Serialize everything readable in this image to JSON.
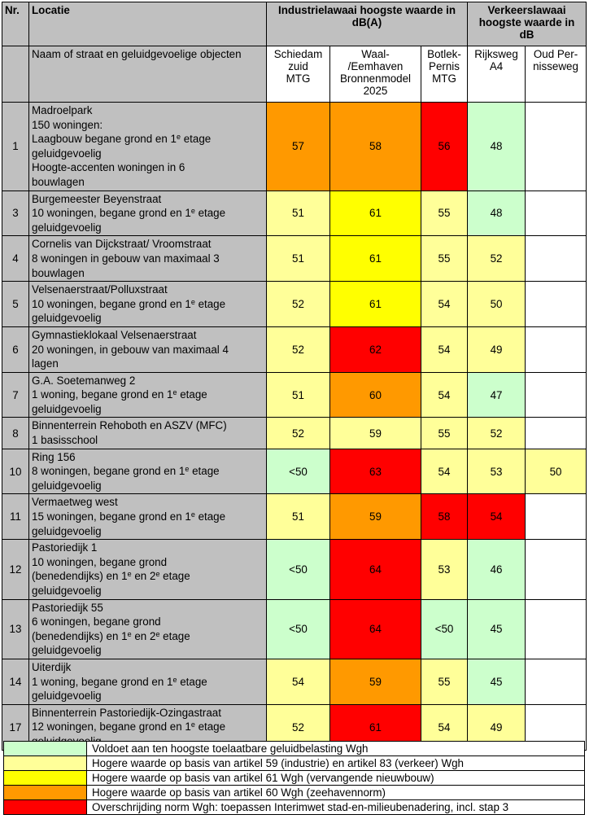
{
  "headers": {
    "nr": "Nr.",
    "locatie": "Locatie",
    "industrie": "Industrielawaai hoogste waarde in dB(A)",
    "verkeer": "Verkeerslawaai hoogste waarde in dB",
    "sub_locatie": "Naam of straat en geluidgevoelige objecten",
    "col_schiedam": [
      "Schiedam",
      "zuid",
      "MTG"
    ],
    "col_waal": [
      "Waal-",
      "/Eemhaven",
      "Bronnenmodel",
      "2025"
    ],
    "col_botlek": [
      "Botlek-",
      "Pernis",
      "MTG"
    ],
    "col_rijksweg": [
      "Rijksweg",
      "A4"
    ],
    "col_oud": [
      "Oud Per-",
      "nisseweg"
    ]
  },
  "rows": [
    {
      "nr": "1",
      "height": 107,
      "loc": [
        "Madroelpark",
        "150 woningen:",
        "Laagbouw begane grond en 1|e| etage",
        "geluidgevoelig",
        "Hoogte-accenten woningen in 6",
        "bouwlagen"
      ],
      "values": [
        "57",
        "58",
        "56",
        "48",
        ""
      ],
      "colors": [
        "orange",
        "orange",
        "red",
        "green",
        "white"
      ]
    },
    {
      "nr": "3",
      "height": 54,
      "loc": [
        "Burgemeester Beyenstraat",
        "10 woningen, begane grond en 1|e| etage",
        "geluidgevoelig"
      ],
      "values": [
        "51",
        "61",
        "55",
        "48",
        ""
      ],
      "colors": [
        "lyellow",
        "yellow",
        "lyellow",
        "green",
        "white"
      ]
    },
    {
      "nr": "4",
      "height": 54,
      "loc": [
        "Cornelis van Dijckstraat/ Vroomstraat",
        "8 woningen in gebouw van maximaal 3",
        "bouwlagen"
      ],
      "values": [
        "51",
        "61",
        "55",
        "52",
        ""
      ],
      "colors": [
        "lyellow",
        "yellow",
        "lyellow",
        "lyellow",
        "white"
      ]
    },
    {
      "nr": "5",
      "height": 53,
      "loc": [
        "Velsenaerstraat/Polluxstraat",
        "10 woningen, begane grond en 1|e| etage",
        "geluidgevoelig"
      ],
      "values": [
        "52",
        "61",
        "54",
        "50",
        ""
      ],
      "colors": [
        "lyellow",
        "yellow",
        "lyellow",
        "lyellow",
        "white"
      ]
    },
    {
      "nr": "6",
      "height": 53,
      "loc": [
        "Gymnastieklokaal Velsenaerstraat",
        "20 woningen, in gebouw van maximaal 4",
        "lagen"
      ],
      "values": [
        "52",
        "62",
        "54",
        "49",
        ""
      ],
      "colors": [
        "lyellow",
        "red",
        "lyellow",
        "lyellow",
        "white"
      ]
    },
    {
      "nr": "7",
      "height": 53,
      "loc": [
        "G.A. Soetemanweg 2",
        "1 woning, begane grond en 1|e| etage",
        "geluidgevoelig"
      ],
      "values": [
        "51",
        "60",
        "54",
        "47",
        ""
      ],
      "colors": [
        "lyellow",
        "orange",
        "lyellow",
        "green",
        "white"
      ]
    },
    {
      "nr": "8",
      "height": 37,
      "loc": [
        "Binnenterrein Rehoboth en ASZV (MFC)",
        "1 basisschool"
      ],
      "values": [
        "52",
        "59",
        "55",
        "52",
        ""
      ],
      "colors": [
        "lyellow",
        "lyellow",
        "lyellow",
        "lyellow",
        "white"
      ]
    },
    {
      "nr": "10",
      "height": 54,
      "loc": [
        "Ring 156",
        "8 woningen, begane grond en 1|e| etage",
        "geluidgevoelig"
      ],
      "values": [
        "<50",
        "63",
        "54",
        "53",
        "50"
      ],
      "colors": [
        "green",
        "red",
        "lyellow",
        "lyellow",
        "lyellow"
      ]
    },
    {
      "nr": "11",
      "height": 53,
      "loc": [
        "Vermaetweg west",
        "15 woningen, begane grond en 1|e| etage",
        "geluidgevoelig"
      ],
      "values": [
        "51",
        "59",
        "58",
        "54",
        ""
      ],
      "colors": [
        "lyellow",
        "orange",
        "red",
        "red",
        "white"
      ]
    },
    {
      "nr": "12",
      "height": 70,
      "loc": [
        "Pastoriedijk 1",
        "10 woningen, begane grond",
        "(benedendijks) en 1|e| en 2|e| etage",
        "geluidgevoelig"
      ],
      "values": [
        "<50",
        "64",
        "53",
        "46",
        ""
      ],
      "colors": [
        "green",
        "red",
        "lyellow",
        "green",
        "white"
      ]
    },
    {
      "nr": "13",
      "height": 71,
      "loc": [
        "Pastoriedijk 55",
        "6 woningen, begane grond",
        "(benedendijks) en 1|e| en 2|e| etage",
        "geluidgevoelig"
      ],
      "values": [
        "<50",
        "64",
        "<50",
        "45",
        ""
      ],
      "colors": [
        "green",
        "red",
        "green",
        "green",
        "white"
      ]
    },
    {
      "nr": "14",
      "height": 53,
      "loc": [
        "Uiterdijk",
        "1 woning, begane grond en 1|e| etage",
        "geluidgevoelig"
      ],
      "values": [
        "54",
        "59",
        "55",
        "45",
        ""
      ],
      "colors": [
        "lyellow",
        "orange",
        "lyellow",
        "green",
        "white"
      ]
    },
    {
      "nr": "17",
      "height": 54,
      "loc": [
        "Binnenterrein Pastoriedijk-Ozingastraat",
        "12 woningen, begane grond en 1|e| etage",
        "geluidgevoelig"
      ],
      "values": [
        "52",
        "61",
        "54",
        "49",
        ""
      ],
      "colors": [
        "lyellow",
        "red",
        "lyellow",
        "lyellow",
        "white"
      ]
    }
  ],
  "legend": [
    {
      "color": "green",
      "text": "Voldoet aan ten hoogste toelaatbare geluidbelasting Wgh"
    },
    {
      "color": "lyellow",
      "text": "Hogere waarde op basis van artikel 59 (industrie) en artikel 83 (verkeer) Wgh"
    },
    {
      "color": "yellow",
      "text": "Hogere waarde op basis van artikel 61 Wgh (vervangende nieuwbouw)"
    },
    {
      "color": "orange",
      "text": "Hogere waarde op basis van artikel 60 Wgh (zeehavennorm)"
    },
    {
      "color": "red",
      "text": "Overschrijding norm Wgh: toepassen Interimwet stad-en-milieubenadering, incl. stap 3"
    }
  ],
  "colors": {
    "green": "#ccffcc",
    "lyellow": "#ffff99",
    "yellow": "#ffff00",
    "orange": "#ff9900",
    "red": "#ff0000",
    "white": "#ffffff",
    "header_gray": "#c0c0c0"
  }
}
